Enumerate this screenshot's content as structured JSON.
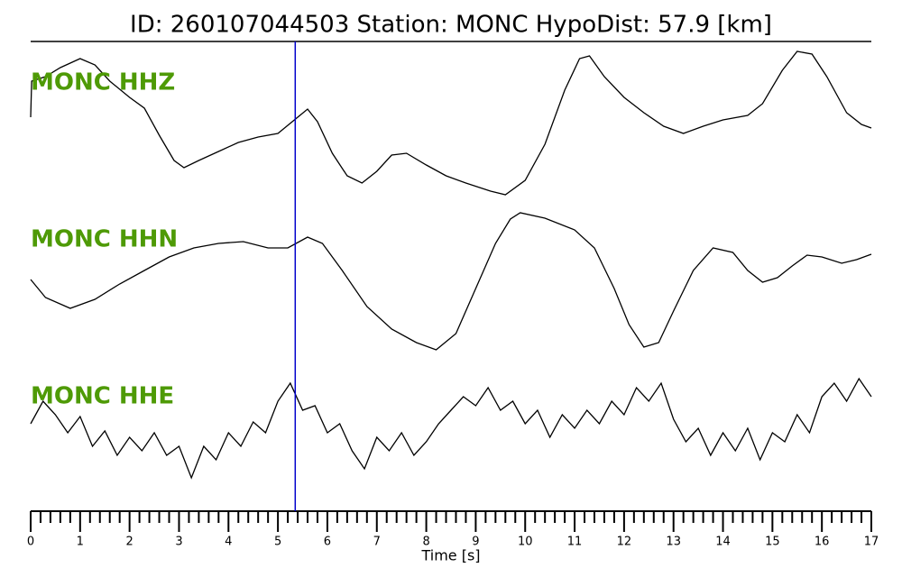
{
  "chart_data": {
    "type": "line",
    "title": "ID: 260107044503   Station: MONC   HypoDist:    57.9 [km]",
    "xlabel": "Time [s]",
    "xlim": [
      0,
      17
    ],
    "xticks": [
      0,
      1,
      2,
      3,
      4,
      5,
      6,
      7,
      8,
      9,
      10,
      11,
      12,
      13,
      14,
      15,
      16,
      17
    ],
    "ylim": [
      -85,
      85
    ],
    "pick": {
      "value": 5.35,
      "color": "#0000cc"
    },
    "label_color": "#4e9a06",
    "series": [
      {
        "name": "MONC HHZ",
        "color": "#000000",
        "x": [
          0,
          0.02,
          0.3,
          0.6,
          1.0,
          1.3,
          1.6,
          2.0,
          2.3,
          2.6,
          2.9,
          3.1,
          3.4,
          3.8,
          4.2,
          4.6,
          5.0,
          5.4,
          5.6,
          5.8,
          6.1,
          6.4,
          6.7,
          7.0,
          7.3,
          7.6,
          8.0,
          8.4,
          8.8,
          9.3,
          9.6,
          10.0,
          10.4,
          10.8,
          11.1,
          11.3,
          11.6,
          12.0,
          12.4,
          12.8,
          13.2,
          13.6,
          14.0,
          14.5,
          14.8,
          15.2,
          15.5,
          15.8,
          16.1,
          16.5,
          16.8,
          17.0
        ],
        "values": [
          7,
          47,
          52,
          62,
          72,
          65,
          47,
          29,
          17,
          -13,
          -41,
          -49,
          -41,
          -31,
          -21,
          -15,
          -11,
          7,
          16,
          2,
          -33,
          -58,
          -66,
          -53,
          -35,
          -33,
          -46,
          -58,
          -66,
          -75,
          -79,
          -63,
          -23,
          37,
          72,
          75,
          52,
          29,
          12,
          -3,
          -11,
          -3,
          4,
          9,
          22,
          59,
          80,
          77,
          52,
          12,
          -1,
          -5
        ]
      },
      {
        "name": "MONC HHN",
        "color": "#000000",
        "x": [
          0,
          0.3,
          0.8,
          1.3,
          1.8,
          2.3,
          2.8,
          3.3,
          3.8,
          4.3,
          4.8,
          5.2,
          5.6,
          5.9,
          6.3,
          6.8,
          7.3,
          7.8,
          8.2,
          8.6,
          9.0,
          9.4,
          9.7,
          9.9,
          10.4,
          11.0,
          11.4,
          11.8,
          12.1,
          12.4,
          12.7,
          13.0,
          13.4,
          13.8,
          14.2,
          14.5,
          14.8,
          15.1,
          15.4,
          15.7,
          16.0,
          16.4,
          16.7,
          17.0
        ],
        "values": [
          1,
          -19,
          -31,
          -21,
          -4,
          11,
          26,
          36,
          41,
          43,
          36,
          36,
          48,
          41,
          11,
          -29,
          -54,
          -69,
          -77,
          -59,
          -9,
          41,
          68,
          75,
          69,
          56,
          36,
          -9,
          -49,
          -74,
          -69,
          -34,
          11,
          36,
          31,
          11,
          -2,
          3,
          16,
          28,
          26,
          19,
          23,
          29
        ]
      },
      {
        "name": "MONC HHE",
        "color": "#000000",
        "x": [
          0,
          0.25,
          0.5,
          0.75,
          1,
          1.25,
          1.5,
          1.75,
          2,
          2.25,
          2.5,
          2.75,
          3,
          3.25,
          3.5,
          3.75,
          4,
          4.25,
          4.5,
          4.75,
          5,
          5.25,
          5.5,
          5.75,
          6,
          6.25,
          6.5,
          6.75,
          7,
          7.25,
          7.5,
          7.75,
          8,
          8.25,
          8.5,
          8.75,
          9,
          9.25,
          9.5,
          9.75,
          10,
          10.25,
          10.5,
          10.75,
          11,
          11.25,
          11.5,
          11.75,
          12,
          12.25,
          12.5,
          12.75,
          13,
          13.25,
          13.5,
          13.75,
          14,
          14.25,
          14.5,
          14.75,
          15,
          15.25,
          15.5,
          15.75,
          16,
          16.25,
          16.5,
          16.75,
          17
        ],
        "values": [
          15,
          40,
          25,
          5,
          23,
          -10,
          7,
          -20,
          0,
          -15,
          5,
          -20,
          -10,
          -45,
          -10,
          -25,
          5,
          -10,
          17,
          5,
          40,
          60,
          30,
          35,
          5,
          15,
          -15,
          -35,
          0,
          -15,
          5,
          -20,
          -5,
          15,
          30,
          45,
          35,
          55,
          30,
          40,
          15,
          30,
          0,
          25,
          10,
          30,
          15,
          40,
          25,
          55,
          40,
          60,
          20,
          -5,
          10,
          -20,
          5,
          -15,
          10,
          -25,
          5,
          -5,
          25,
          5,
          45,
          60,
          40,
          65,
          45
        ]
      }
    ]
  }
}
